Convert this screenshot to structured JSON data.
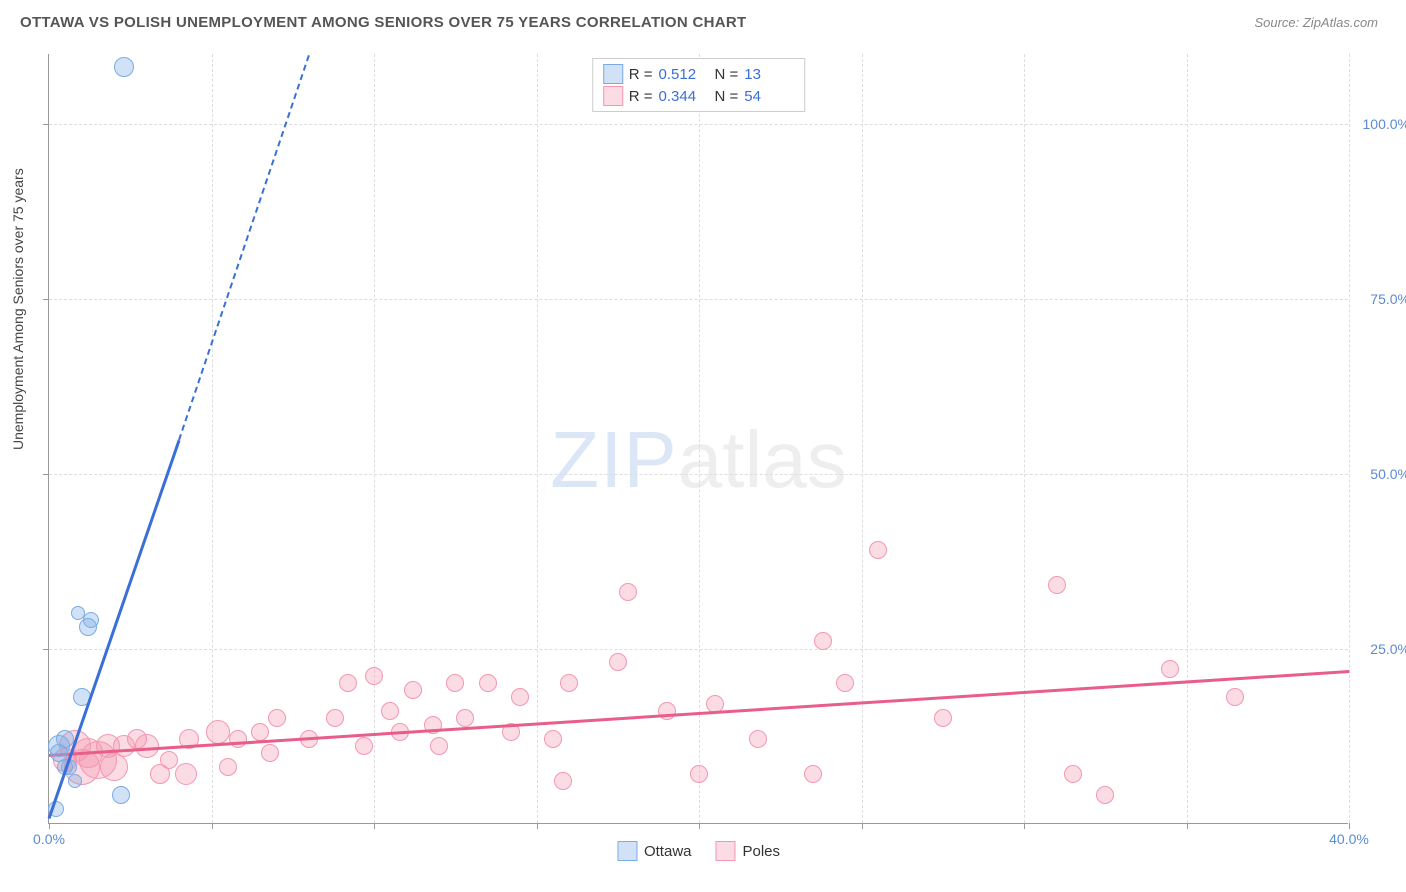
{
  "title": "OTTAWA VS POLISH UNEMPLOYMENT AMONG SENIORS OVER 75 YEARS CORRELATION CHART",
  "source": "Source: ZipAtlas.com",
  "y_axis_label": "Unemployment Among Seniors over 75 years",
  "watermark": {
    "part1": "ZIP",
    "part2": "atlas"
  },
  "chart": {
    "type": "scatter",
    "xlim": [
      0,
      40
    ],
    "ylim": [
      0,
      110
    ],
    "x_ticks": [
      0,
      5,
      10,
      15,
      20,
      25,
      30,
      35,
      40
    ],
    "x_tick_labels": {
      "0": "0.0%",
      "40": "40.0%"
    },
    "y_ticks": [
      25,
      50,
      75,
      100
    ],
    "y_tick_labels": {
      "25": "25.0%",
      "50": "50.0%",
      "75": "75.0%",
      "100": "100.0%"
    },
    "background_color": "#ffffff",
    "grid_color": "#dddddd",
    "axis_color": "#999999",
    "tick_label_color": "#5b8bd4"
  },
  "series": {
    "ottawa": {
      "label": "Ottawa",
      "fill": "rgba(122,171,230,0.35)",
      "stroke": "#7aabe6",
      "trend_color": "#3a6fd8",
      "trend_solid": {
        "x1": 0,
        "y1": 1,
        "x2": 4,
        "y2": 55
      },
      "trend_dash": {
        "x1": 4,
        "y1": 55,
        "x2": 8,
        "y2": 110
      },
      "points": [
        {
          "x": 0.2,
          "y": 2,
          "r": 8
        },
        {
          "x": 0.3,
          "y": 10,
          "r": 9
        },
        {
          "x": 0.3,
          "y": 11,
          "r": 11
        },
        {
          "x": 0.5,
          "y": 12,
          "r": 9
        },
        {
          "x": 0.5,
          "y": 8,
          "r": 8
        },
        {
          "x": 0.6,
          "y": 8,
          "r": 8
        },
        {
          "x": 0.8,
          "y": 6,
          "r": 7
        },
        {
          "x": 1.0,
          "y": 18,
          "r": 9
        },
        {
          "x": 2.2,
          "y": 4,
          "r": 9
        },
        {
          "x": 1.2,
          "y": 28,
          "r": 9
        },
        {
          "x": 1.3,
          "y": 29,
          "r": 8
        },
        {
          "x": 0.9,
          "y": 30,
          "r": 7
        },
        {
          "x": 2.3,
          "y": 108,
          "r": 10
        }
      ]
    },
    "poles": {
      "label": "Poles",
      "fill": "rgba(244,151,177,0.35)",
      "stroke": "#f497b1",
      "trend_color": "#e85d8a",
      "trend_solid": {
        "x1": 0,
        "y1": 10,
        "x2": 40,
        "y2": 22
      },
      "points": [
        {
          "x": 0.5,
          "y": 9,
          "r": 12
        },
        {
          "x": 0.8,
          "y": 11,
          "r": 16
        },
        {
          "x": 1.0,
          "y": 8,
          "r": 18
        },
        {
          "x": 1.2,
          "y": 10,
          "r": 15
        },
        {
          "x": 1.5,
          "y": 9,
          "r": 19
        },
        {
          "x": 1.8,
          "y": 11,
          "r": 12
        },
        {
          "x": 2.0,
          "y": 8,
          "r": 14
        },
        {
          "x": 2.3,
          "y": 11,
          "r": 11
        },
        {
          "x": 2.7,
          "y": 12,
          "r": 10
        },
        {
          "x": 3.0,
          "y": 11,
          "r": 12
        },
        {
          "x": 3.4,
          "y": 7,
          "r": 10
        },
        {
          "x": 3.7,
          "y": 9,
          "r": 9
        },
        {
          "x": 4.2,
          "y": 7,
          "r": 11
        },
        {
          "x": 4.3,
          "y": 12,
          "r": 10
        },
        {
          "x": 5.2,
          "y": 13,
          "r": 12
        },
        {
          "x": 5.5,
          "y": 8,
          "r": 9
        },
        {
          "x": 5.8,
          "y": 12,
          "r": 9
        },
        {
          "x": 6.5,
          "y": 13,
          "r": 9
        },
        {
          "x": 6.8,
          "y": 10,
          "r": 9
        },
        {
          "x": 7.0,
          "y": 15,
          "r": 9
        },
        {
          "x": 8.0,
          "y": 12,
          "r": 9
        },
        {
          "x": 8.8,
          "y": 15,
          "r": 9
        },
        {
          "x": 9.2,
          "y": 20,
          "r": 9
        },
        {
          "x": 9.7,
          "y": 11,
          "r": 9
        },
        {
          "x": 10.0,
          "y": 21,
          "r": 9
        },
        {
          "x": 10.5,
          "y": 16,
          "r": 9
        },
        {
          "x": 11.2,
          "y": 19,
          "r": 9
        },
        {
          "x": 10.8,
          "y": 13,
          "r": 9
        },
        {
          "x": 11.8,
          "y": 14,
          "r": 9
        },
        {
          "x": 12.0,
          "y": 11,
          "r": 9
        },
        {
          "x": 12.5,
          "y": 20,
          "r": 9
        },
        {
          "x": 12.8,
          "y": 15,
          "r": 9
        },
        {
          "x": 13.5,
          "y": 20,
          "r": 9
        },
        {
          "x": 14.2,
          "y": 13,
          "r": 9
        },
        {
          "x": 14.5,
          "y": 18,
          "r": 9
        },
        {
          "x": 15.5,
          "y": 12,
          "r": 9
        },
        {
          "x": 15.8,
          "y": 6,
          "r": 9
        },
        {
          "x": 16.0,
          "y": 20,
          "r": 9
        },
        {
          "x": 17.5,
          "y": 23,
          "r": 9
        },
        {
          "x": 17.8,
          "y": 33,
          "r": 9
        },
        {
          "x": 19.0,
          "y": 16,
          "r": 9
        },
        {
          "x": 20.0,
          "y": 7,
          "r": 9
        },
        {
          "x": 20.5,
          "y": 17,
          "r": 9
        },
        {
          "x": 21.8,
          "y": 12,
          "r": 9
        },
        {
          "x": 23.5,
          "y": 7,
          "r": 9
        },
        {
          "x": 23.8,
          "y": 26,
          "r": 9
        },
        {
          "x": 24.5,
          "y": 20,
          "r": 9
        },
        {
          "x": 25.5,
          "y": 39,
          "r": 9
        },
        {
          "x": 27.5,
          "y": 15,
          "r": 9
        },
        {
          "x": 31.0,
          "y": 34,
          "r": 9
        },
        {
          "x": 31.5,
          "y": 7,
          "r": 9
        },
        {
          "x": 32.5,
          "y": 4,
          "r": 9
        },
        {
          "x": 34.5,
          "y": 22,
          "r": 9
        },
        {
          "x": 36.5,
          "y": 18,
          "r": 9
        }
      ]
    }
  },
  "stats": [
    {
      "series": "ottawa",
      "R": "0.512",
      "N": "13"
    },
    {
      "series": "poles",
      "R": "0.344",
      "N": "54"
    }
  ],
  "stats_labels": {
    "R": "R =",
    "N": "N ="
  }
}
